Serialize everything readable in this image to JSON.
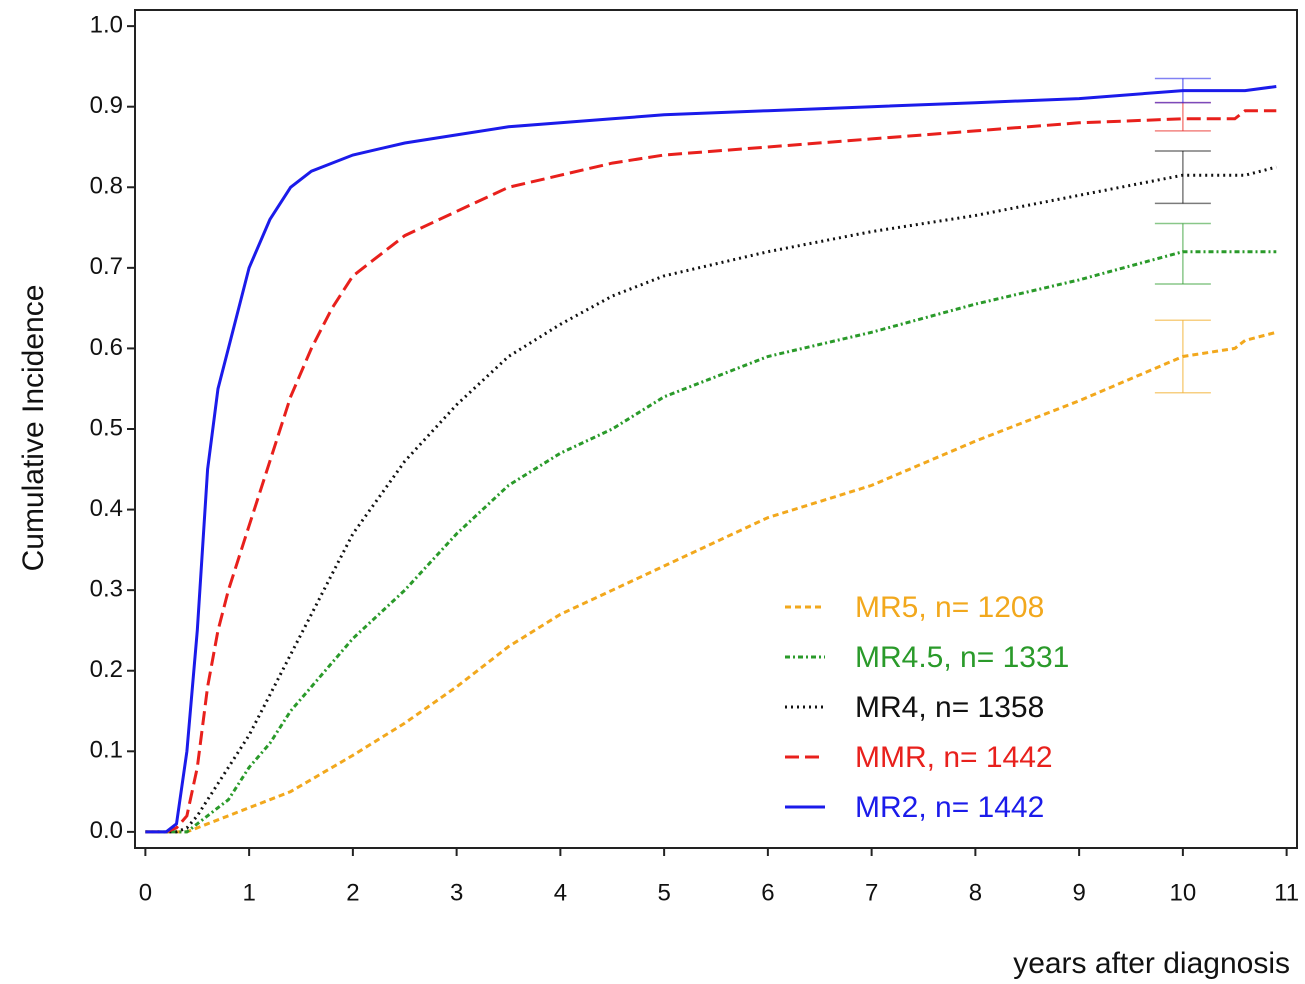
{
  "chart_data": {
    "type": "line",
    "x_label": "years after diagnosis",
    "y_label": "Cumulative Incidence",
    "x": [
      0,
      0.2,
      0.3,
      0.4,
      0.5,
      0.6,
      0.7,
      0.8,
      1,
      1.2,
      1.4,
      1.6,
      1.8,
      2,
      2.5,
      3,
      3.5,
      4,
      4.5,
      5,
      6,
      7,
      8,
      9,
      10,
      10.5,
      10.6,
      10.9
    ],
    "series": [
      {
        "name": "MR5, n= 1208",
        "color": "#f2a81d",
        "line_style": "dashed-short",
        "values": [
          0,
          0,
          0,
          0,
          0.005,
          0.01,
          0.015,
          0.02,
          0.03,
          0.04,
          0.05,
          0.065,
          0.08,
          0.095,
          0.135,
          0.18,
          0.23,
          0.27,
          0.3,
          0.33,
          0.39,
          0.43,
          0.485,
          0.535,
          0.59,
          0.6,
          0.61,
          0.62
        ],
        "interval": {
          "x": 10,
          "low": 0.545,
          "high": 0.635
        }
      },
      {
        "name": "MR4.5, n= 1331",
        "color": "#2a9a2a",
        "line_style": "dash-dot",
        "values": [
          0,
          0,
          0,
          0,
          0.01,
          0.02,
          0.03,
          0.04,
          0.08,
          0.11,
          0.15,
          0.18,
          0.21,
          0.24,
          0.3,
          0.37,
          0.43,
          0.47,
          0.5,
          0.54,
          0.59,
          0.62,
          0.655,
          0.685,
          0.72,
          0.72,
          0.72,
          0.72
        ],
        "interval": {
          "x": 10,
          "low": 0.68,
          "high": 0.755
        }
      },
      {
        "name": "MR4, n= 1358",
        "color": "#111111",
        "line_style": "dotted",
        "values": [
          0,
          0,
          0,
          0.005,
          0.02,
          0.04,
          0.06,
          0.08,
          0.12,
          0.17,
          0.22,
          0.27,
          0.32,
          0.37,
          0.46,
          0.53,
          0.59,
          0.63,
          0.665,
          0.69,
          0.72,
          0.745,
          0.765,
          0.79,
          0.815,
          0.815,
          0.815,
          0.825
        ],
        "interval": {
          "x": 10,
          "low": 0.78,
          "high": 0.845
        }
      },
      {
        "name": "MMR, n= 1442",
        "color": "#e8201c",
        "line_style": "dashed",
        "values": [
          0,
          0,
          0.005,
          0.02,
          0.08,
          0.18,
          0.25,
          0.3,
          0.38,
          0.46,
          0.54,
          0.6,
          0.65,
          0.69,
          0.74,
          0.77,
          0.8,
          0.815,
          0.83,
          0.84,
          0.85,
          0.86,
          0.87,
          0.88,
          0.885,
          0.885,
          0.895,
          0.895
        ],
        "interval": {
          "x": 10,
          "low": 0.87,
          "high": 0.905
        }
      },
      {
        "name": "MR2, n= 1442",
        "color": "#1b1bea",
        "line_style": "solid",
        "values": [
          0,
          0,
          0.01,
          0.1,
          0.25,
          0.45,
          0.55,
          0.6,
          0.7,
          0.76,
          0.8,
          0.82,
          0.83,
          0.84,
          0.855,
          0.865,
          0.875,
          0.88,
          0.885,
          0.89,
          0.895,
          0.9,
          0.905,
          0.91,
          0.92,
          0.92,
          0.92,
          0.925
        ],
        "interval": {
          "x": 10,
          "low": 0.905,
          "high": 0.935
        }
      }
    ],
    "xlim": [
      -0.1,
      11.1
    ],
    "xticks": [
      0,
      1,
      2,
      3,
      4,
      5,
      6,
      7,
      8,
      9,
      10,
      11
    ],
    "ylim": [
      -0.02,
      1.02
    ],
    "yticks": [
      {
        "value": 0,
        "label": "0.0"
      },
      0.1,
      0.2,
      0.3,
      0.4,
      0.5,
      0.6,
      0.7,
      0.8,
      0.9,
      {
        "value": 1,
        "label": "1.0"
      }
    ],
    "legend": "lower-right",
    "grid": false
  }
}
